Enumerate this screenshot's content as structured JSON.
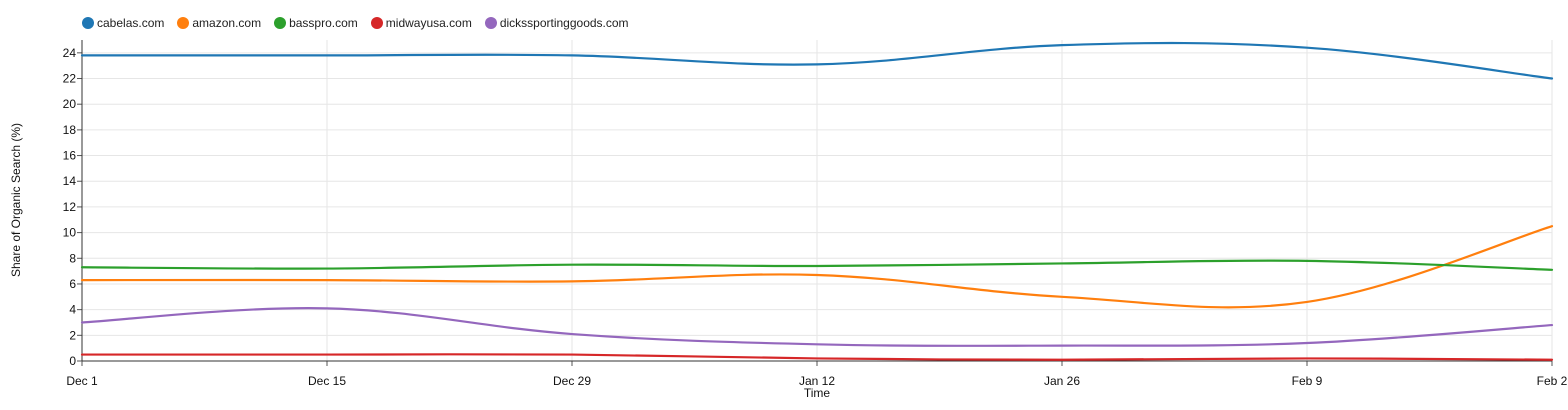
{
  "chart_data": {
    "type": "line",
    "ylabel": "Share of Organic Search (%)",
    "xlabel": "Time",
    "x_ticks": [
      "Dec 1",
      "Dec 15",
      "Dec 29",
      "Jan 12",
      "Jan 26",
      "Feb 9",
      "Feb 2"
    ],
    "ylim": [
      0,
      25
    ],
    "y_ticks": [
      0,
      2,
      4,
      6,
      8,
      10,
      12,
      14,
      16,
      18,
      20,
      22,
      24
    ],
    "grid": true,
    "legend_position": "top-left",
    "series": [
      {
        "name": "cabelas.com",
        "color": "#1f77b4",
        "values": [
          23.8,
          23.8,
          23.8,
          23.1,
          24.6,
          24.4,
          22.0
        ]
      },
      {
        "name": "amazon.com",
        "color": "#ff7f0e",
        "values": [
          6.3,
          6.3,
          6.2,
          6.7,
          5.0,
          4.6,
          10.5
        ]
      },
      {
        "name": "basspro.com",
        "color": "#2ca02c",
        "values": [
          7.3,
          7.2,
          7.5,
          7.4,
          7.6,
          7.8,
          7.1
        ]
      },
      {
        "name": "midwayusa.com",
        "color": "#d62728",
        "values": [
          0.5,
          0.5,
          0.5,
          0.2,
          0.1,
          0.2,
          0.1
        ]
      },
      {
        "name": "dickssportinggoods.com",
        "color": "#9467bd",
        "values": [
          3.0,
          4.1,
          2.1,
          1.3,
          1.2,
          1.4,
          2.8
        ]
      }
    ]
  }
}
